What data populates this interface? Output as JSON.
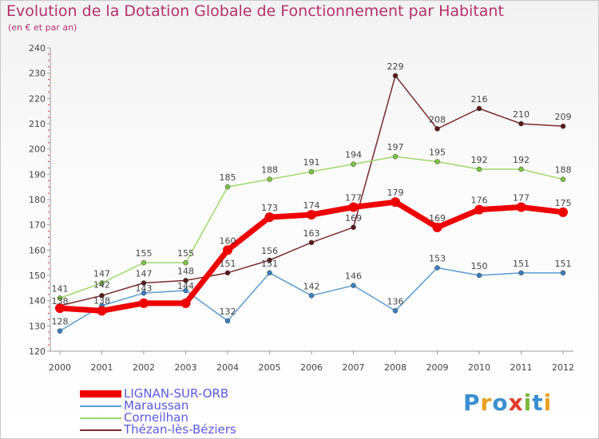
{
  "header": {
    "title": "Evolution de la Dotation Globale de Fonctionnement par Habitant",
    "subtitle": "(en € et par an)"
  },
  "logo": {
    "text": "Proxiti",
    "colors": [
      "#3a8fd0",
      "#e8a020",
      "#3a8fd0",
      "#e03a2a",
      "#7cb83a",
      "#3a8fd0",
      "#e8a020"
    ]
  },
  "chart_data": {
    "type": "line",
    "x": [
      "2000",
      "2001",
      "2002",
      "2003",
      "2004",
      "2005",
      "2006",
      "2007",
      "2008",
      "2009",
      "2010",
      "2011",
      "2012"
    ],
    "ylim": [
      120,
      240
    ],
    "yticks": [
      120,
      130,
      140,
      150,
      160,
      170,
      180,
      190,
      200,
      210,
      220,
      230,
      240
    ],
    "grid": false,
    "legend": "bottom-left",
    "series": [
      {
        "name": "Thézan-lès-Béziers",
        "color": "#7a2a30",
        "marker": "#5a1a1a",
        "values": [
          138,
          142,
          147,
          148,
          151,
          156,
          163,
          169,
          229,
          208,
          216,
          210,
          209
        ],
        "labels": [
          "",
          "",
          "147",
          "148",
          "151",
          "156",
          "163",
          "169",
          "229",
          "208",
          "216",
          "210",
          "209"
        ]
      },
      {
        "name": "Maraussan",
        "color": "#5b9bd0",
        "marker": "#3a7fc0",
        "values": [
          128,
          138,
          143,
          144,
          132,
          151,
          142,
          146,
          136,
          153,
          150,
          151,
          151
        ],
        "labels": [
          "128",
          "",
          "",
          "",
          "132",
          "151",
          "142",
          "146",
          "136",
          "153",
          "150",
          "151",
          "151"
        ]
      },
      {
        "name": "Corneilhan",
        "color": "#9dd96b",
        "marker": "#7cc444",
        "values": [
          141,
          147,
          155,
          155,
          185,
          188,
          191,
          194,
          197,
          195,
          192,
          192,
          188
        ],
        "labels": [
          "141",
          "147",
          "155",
          "155",
          "185",
          "188",
          "191",
          "194",
          "197",
          "195",
          "192",
          "192",
          "188"
        ]
      },
      {
        "name": "LIGNAN-SUR-ORB",
        "color": "#ee0000",
        "marker": "#ee0000",
        "values": [
          137,
          136,
          139,
          139,
          160,
          173,
          174,
          177,
          179,
          169,
          176,
          177,
          175
        ],
        "labels": [
          "",
          "",
          "",
          "",
          "160",
          "173",
          "174",
          "177",
          "179",
          "169",
          "176",
          "177",
          "175"
        ]
      }
    ],
    "overlap_labels": [
      {
        "x": "2000",
        "text": "138"
      },
      {
        "x": "2001",
        "text": "142"
      },
      {
        "x": "2001",
        "text": "138"
      },
      {
        "x": "2002",
        "text": "143"
      },
      {
        "x": "2003",
        "text": "144"
      }
    ]
  },
  "legend": {
    "items": [
      {
        "label": "LIGNAN-SUR-ORB",
        "color": "#ee0000"
      },
      {
        "label": "Maraussan",
        "color": "#5b9bd0"
      },
      {
        "label": "Corneilhan",
        "color": "#9dd96b"
      },
      {
        "label": "Thézan-lès-Béziers",
        "color": "#7a2a30"
      }
    ]
  }
}
